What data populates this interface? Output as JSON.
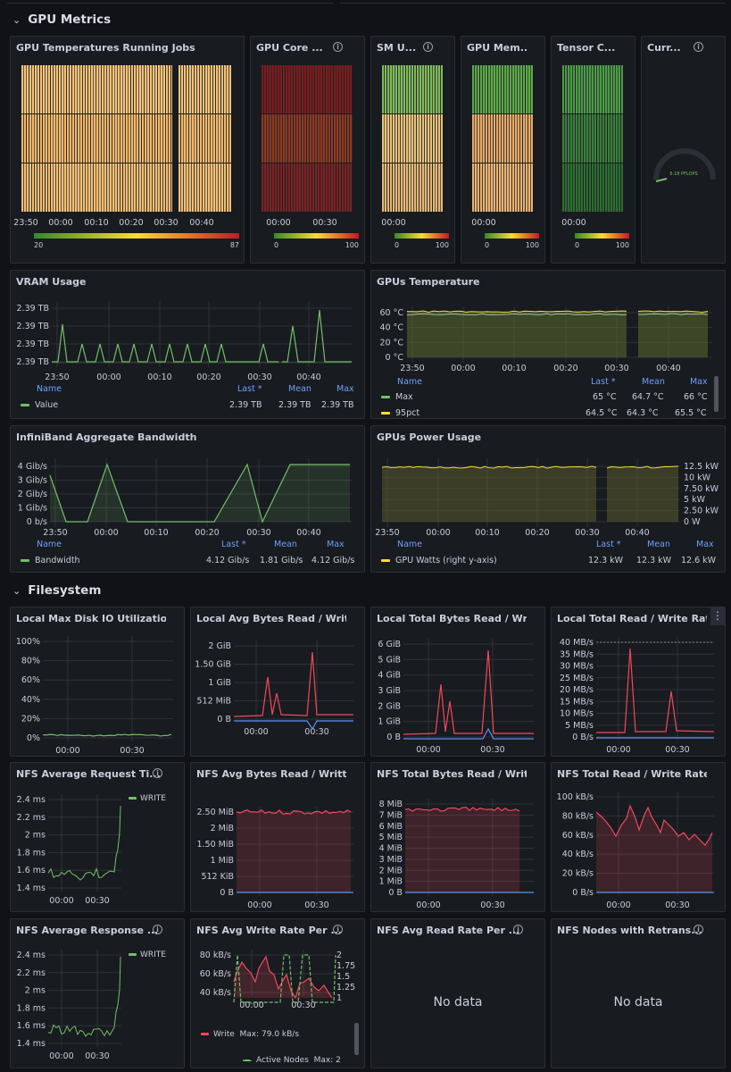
{
  "rows": {
    "gpu": {
      "title": "GPU Metrics"
    },
    "fs": {
      "title": "Filesystem"
    }
  },
  "colors": {
    "green": "#73bf69",
    "yellow": "#fade2a",
    "red": "#f2495c",
    "blue": "#5794f2",
    "gridline": "#2f323a"
  },
  "icons": {
    "chevron": "chevron-down-icon",
    "info": "info-icon",
    "menu": "kebab-menu-icon"
  },
  "panels": {
    "gpu_temp_jobs": {
      "title": "GPU Temperatures Running Jobs",
      "x_ticks": [
        "23:50",
        "00:00",
        "00:10",
        "00:20",
        "00:30",
        "00:40"
      ],
      "scale_min": "20",
      "scale_max": "87"
    },
    "gpu_core": {
      "title": "GPU Core ...",
      "x_ticks": [
        "00:00",
        "00:30"
      ],
      "scale_min": "0",
      "scale_max": "100"
    },
    "sm_util": {
      "title": "SM U...",
      "x_ticks": [
        "00:00"
      ],
      "scale_min": "0",
      "scale_max": "100"
    },
    "gpu_mem": {
      "title": "GPU Mem...",
      "x_ticks": [
        "00:00"
      ],
      "scale_min": "0",
      "scale_max": "100"
    },
    "tensor": {
      "title": "Tensor C...",
      "x_ticks": [
        "00:00"
      ],
      "scale_min": "0",
      "scale_max": "100"
    },
    "current": {
      "title": "Curr...",
      "gauge_value": "6.18 PFLOPS"
    },
    "vram": {
      "title": "VRAM Usage",
      "legend_header": [
        "Name",
        "Last *",
        "Mean",
        "Max"
      ],
      "legend_rows": [
        {
          "name": "Value",
          "last": "2.39 TB",
          "mean": "2.39 TB",
          "max": "2.39 TB"
        }
      ]
    },
    "gpus_temp": {
      "title": "GPUs Temperature",
      "legend_header": [
        "Name",
        "Last *",
        "Mean",
        "Max"
      ],
      "legend_rows": [
        {
          "name": "Max",
          "last": "65 °C",
          "mean": "64.7 °C",
          "max": "66 °C"
        },
        {
          "name": "95pct",
          "last": "64.5 °C",
          "mean": "64.3 °C",
          "max": "65.5 °C"
        }
      ]
    },
    "ib_bw": {
      "title": "InfiniBand Aggregate Bandwidth",
      "legend_header": [
        "Name",
        "Last *",
        "Mean",
        "Max"
      ],
      "legend_rows": [
        {
          "name": "Bandwidth",
          "last": "4.12 Gib/s",
          "mean": "1.81 Gib/s",
          "max": "4.12 Gib/s"
        }
      ]
    },
    "gpus_power": {
      "title": "GPUs Power Usage",
      "legend_header": [
        "Name",
        "Last *",
        "Mean",
        "Max"
      ],
      "legend_rows": [
        {
          "name": "GPU Watts (right y-axis)",
          "last": "12.3 kW",
          "mean": "12.3 kW",
          "max": "12.6 kW"
        }
      ]
    },
    "local_max_disk": {
      "title": "Local Max Disk IO Utilization ..."
    },
    "local_avg_bytes": {
      "title": "Local Avg Bytes Read / Writte..."
    },
    "local_total_bytes": {
      "title": "Local Total Bytes Read / Writt..."
    },
    "local_total_rate": {
      "title": "Local Total Read / Write Rate ..."
    },
    "nfs_avg_req": {
      "title": "NFS Average Request Ti...",
      "legend": "WRITE"
    },
    "nfs_avg_bytes": {
      "title": "NFS Avg Bytes Read / Written..."
    },
    "nfs_total_bytes": {
      "title": "NFS Total Bytes Read / Writte..."
    },
    "nfs_total_rate": {
      "title": "NFS Total Read / Write Rate (..."
    },
    "nfs_avg_resp": {
      "title": "NFS Average Response ...",
      "legend": "WRITE"
    },
    "nfs_avg_write": {
      "title": "NFS Avg Write Rate Per ...",
      "legend_rows": [
        {
          "name": "Write",
          "stat": "Max: 79.0 kB/s"
        },
        {
          "name": "Active Nodes",
          "stat": "Max: 2"
        }
      ]
    },
    "nfs_avg_read": {
      "title": "NFS Avg Read Rate Per ...",
      "message": "No data"
    },
    "nfs_retrans": {
      "title": "NFS Nodes with Retrans...",
      "message": "No data"
    }
  },
  "chart_data": [
    {
      "type": "heatmap",
      "title": "GPU Temperatures Running Jobs",
      "x_ticks": [
        "23:50",
        "00:00",
        "00:10",
        "00:20",
        "00:30",
        "00:40"
      ],
      "color_scale": [
        20,
        87
      ]
    },
    {
      "type": "heatmap",
      "title": "GPU Core ...",
      "x_ticks": [
        "00:00",
        "00:30"
      ],
      "color_scale": [
        0,
        100
      ]
    },
    {
      "type": "heatmap",
      "title": "SM U...",
      "x_ticks": [
        "00:00"
      ],
      "color_scale": [
        0,
        100
      ]
    },
    {
      "type": "heatmap",
      "title": "GPU Mem...",
      "x_ticks": [
        "00:00"
      ],
      "color_scale": [
        0,
        100
      ]
    },
    {
      "type": "heatmap",
      "title": "Tensor C...",
      "x_ticks": [
        "00:00"
      ],
      "color_scale": [
        0,
        100
      ]
    },
    {
      "type": "line",
      "title": "VRAM Usage",
      "x_ticks": [
        "23:50",
        "00:00",
        "00:10",
        "00:20",
        "00:30",
        "00:40"
      ],
      "y_ticks": [
        "2.39 TB",
        "2.39 TB",
        "2.39 TB",
        "2.39 TB"
      ],
      "series": [
        {
          "name": "Value",
          "last": "2.39 TB",
          "mean": "2.39 TB",
          "max": "2.39 TB"
        }
      ]
    },
    {
      "type": "area",
      "title": "GPUs Temperature",
      "x_ticks": [
        "23:50",
        "00:00",
        "00:10",
        "00:20",
        "00:30",
        "00:40"
      ],
      "y_ticks": [
        "0 °C",
        "20 °C",
        "40 °C",
        "60 °C"
      ],
      "series": [
        {
          "name": "Max",
          "last": 65,
          "mean": 64.7,
          "max": 66
        },
        {
          "name": "95pct",
          "last": 64.5,
          "mean": 64.3,
          "max": 65.5
        }
      ]
    },
    {
      "type": "line",
      "title": "InfiniBand Aggregate Bandwidth",
      "x_ticks": [
        "23:50",
        "00:00",
        "00:10",
        "00:20",
        "00:30",
        "00:40"
      ],
      "y_ticks": [
        "0 b/s",
        "1 Gib/s",
        "2 Gib/s",
        "3 Gib/s",
        "4 Gib/s"
      ],
      "series": [
        {
          "name": "Bandwidth",
          "last": 4.12,
          "mean": 1.81,
          "max": 4.12
        }
      ]
    },
    {
      "type": "area",
      "title": "GPUs Power Usage",
      "x_ticks": [
        "23:50",
        "00:00",
        "00:10",
        "00:20",
        "00:30",
        "00:40"
      ],
      "y_ticks_right": [
        "0 W",
        "2.50 kW",
        "5 kW",
        "7.50 kW",
        "10 kW",
        "12.5 kW"
      ],
      "series": [
        {
          "name": "GPU Watts (right y-axis)",
          "last": 12.3,
          "mean": 12.3,
          "max": 12.6
        }
      ]
    },
    {
      "type": "line",
      "title": "Local Max Disk IO Utilization ...",
      "x_ticks": [
        "00:00",
        "00:30"
      ],
      "y_ticks": [
        "0%",
        "20%",
        "40%",
        "60%",
        "80%",
        "100%"
      ]
    },
    {
      "type": "line",
      "title": "Local Avg Bytes Read / Writte...",
      "x_ticks": [
        "00:00",
        "00:30"
      ],
      "y_ticks": [
        "0 B",
        "512 MiB",
        "1 GiB",
        "1.50 GiB",
        "2 GiB"
      ]
    },
    {
      "type": "line",
      "title": "Local Total Bytes Read / Writt...",
      "x_ticks": [
        "00:00",
        "00:30"
      ],
      "y_ticks": [
        "0 B",
        "1 GiB",
        "2 GiB",
        "3 GiB",
        "4 GiB",
        "5 GiB",
        "6 GiB"
      ]
    },
    {
      "type": "line",
      "title": "Local Total Read / Write Rate ...",
      "x_ticks": [
        "00:00",
        "00:30"
      ],
      "y_ticks": [
        "0 B/s",
        "5 MB/s",
        "10 MB/s",
        "15 MB/s",
        "20 MB/s",
        "25 MB/s",
        "30 MB/s",
        "35 MB/s",
        "40 MB/s"
      ]
    },
    {
      "type": "line",
      "title": "NFS Average Request Ti...",
      "x_ticks": [
        "00:00",
        "00:30"
      ],
      "y_ticks": [
        "1.4 ms",
        "1.6 ms",
        "1.8 ms",
        "2 ms",
        "2.2 ms",
        "2.4 ms"
      ],
      "series": [
        {
          "name": "WRITE"
        }
      ]
    },
    {
      "type": "area",
      "title": "NFS Avg Bytes Read / Written...",
      "x_ticks": [
        "00:00",
        "00:30"
      ],
      "y_ticks": [
        "0 B",
        "512 KiB",
        "1 MiB",
        "1.50 MiB",
        "2 MiB",
        "2.50 MiB"
      ]
    },
    {
      "type": "area",
      "title": "NFS Total Bytes Read / Writte...",
      "x_ticks": [
        "00:00",
        "00:30"
      ],
      "y_ticks": [
        "0 B",
        "1 MiB",
        "2 MiB",
        "3 MiB",
        "4 MiB",
        "5 MiB",
        "6 MiB",
        "7 MiB",
        "8 MiB"
      ]
    },
    {
      "type": "area",
      "title": "NFS Total Read / Write Rate (...",
      "x_ticks": [
        "00:00",
        "00:30"
      ],
      "y_ticks": [
        "0 B/s",
        "20 kB/s",
        "40 kB/s",
        "60 kB/s",
        "80 kB/s",
        "100 kB/s"
      ]
    },
    {
      "type": "line",
      "title": "NFS Average Response ...",
      "x_ticks": [
        "00:00",
        "00:30"
      ],
      "y_ticks": [
        "1.4 ms",
        "1.6 ms",
        "1.8 ms",
        "2 ms",
        "2.2 ms",
        "2.4 ms"
      ],
      "series": [
        {
          "name": "WRITE"
        }
      ]
    },
    {
      "type": "line",
      "title": "NFS Avg Write Rate Per ...",
      "x_ticks": [
        "00:00",
        "00:30"
      ],
      "y_ticks": [
        "40 kB/s",
        "60 kB/s",
        "80 kB/s"
      ],
      "y_ticks_right": [
        "1",
        "1.25",
        "1.5",
        "1.75",
        "2"
      ],
      "series": [
        {
          "name": "Write",
          "max": 79.0
        },
        {
          "name": "Active Nodes",
          "max": 2
        }
      ]
    }
  ]
}
